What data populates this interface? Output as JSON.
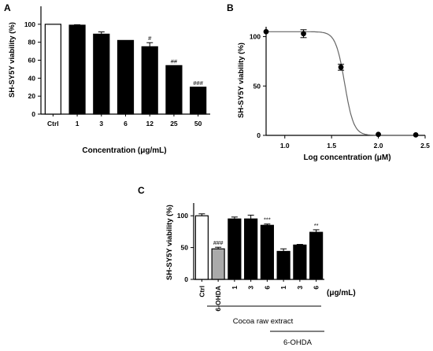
{
  "chart_data": [
    {
      "panel": "A",
      "type": "bar",
      "ylabel": "SH-SY5Y viability (%)",
      "xlabel": "Concentration (μg/mL)",
      "ylim": [
        0,
        120
      ],
      "yticks": [
        0,
        20,
        40,
        60,
        80,
        100
      ],
      "categories": [
        "Ctrl",
        "1",
        "3",
        "6",
        "12",
        "25",
        "50"
      ],
      "values": [
        100,
        99,
        89,
        82,
        75,
        54,
        30
      ],
      "errors": [
        0,
        0.5,
        2.5,
        0,
        4.5,
        0,
        0
      ],
      "fills": [
        "#ffffff",
        "#000000",
        "#000000",
        "#000000",
        "#000000",
        "#000000",
        "#000000"
      ],
      "annotations": [
        "",
        "",
        "",
        "",
        "#",
        "##",
        "###"
      ]
    },
    {
      "panel": "B",
      "type": "scatter",
      "ylabel": "SH-SY5Y viability (%)",
      "xlabel": "Log concentration (μM)",
      "xlim": [
        0.8,
        2.5
      ],
      "ylim": [
        0,
        110
      ],
      "xticks": [
        "1.0",
        "1.5",
        "2.0",
        "2.5"
      ],
      "yticks": [
        0,
        50,
        100
      ],
      "points": [
        {
          "x": 0.8,
          "y": 105,
          "err": 0
        },
        {
          "x": 1.2,
          "y": 103,
          "err": 4
        },
        {
          "x": 1.6,
          "y": 69,
          "err": 3
        },
        {
          "x": 2.0,
          "y": 1,
          "err": 0
        },
        {
          "x": 2.4,
          "y": 0.5,
          "err": 0
        }
      ],
      "fit": {
        "top": 105,
        "bottom": 0,
        "logIC50": 1.64,
        "hill": 9
      }
    },
    {
      "panel": "C",
      "type": "bar",
      "ylabel": "SH-SY5Y viability (%)",
      "ylim": [
        0,
        120
      ],
      "yticks": [
        0,
        50,
        100
      ],
      "categories": [
        "Ctrl",
        "6-OHDA",
        "1",
        "3",
        "6",
        "1",
        "3",
        "6"
      ],
      "values": [
        100,
        48,
        95,
        95,
        85,
        44,
        54,
        74
      ],
      "errors": [
        3,
        2.5,
        3,
        6,
        2,
        4,
        1,
        4
      ],
      "fills": [
        "#ffffff",
        "#aaaaaa",
        "#000000",
        "#000000",
        "#000000",
        "#000000",
        "#000000",
        "#000000"
      ],
      "annotations": [
        "",
        "###",
        "",
        "",
        "***",
        "",
        "",
        "**"
      ],
      "unit_label": "(μg/mL)",
      "group_label_1": "Cocoa raw extract",
      "group_label_2": "6-OHDA"
    }
  ]
}
